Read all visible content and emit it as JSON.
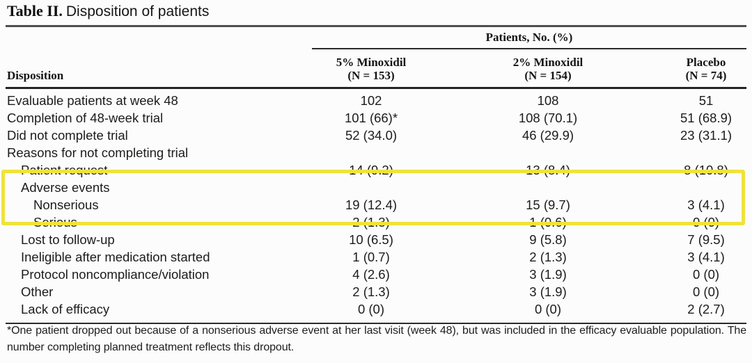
{
  "title": {
    "label": "Table II.",
    "caption": "Disposition of patients"
  },
  "table": {
    "spanner": "Patients, No. (%)",
    "row_header": "Disposition",
    "columns": [
      {
        "line1": "5% Minoxidil",
        "line2": "(N = 153)"
      },
      {
        "line1": "2% Minoxidil",
        "line2": "(N = 154)"
      },
      {
        "line1": "Placebo",
        "line2": "(N = 74)"
      }
    ],
    "rows": [
      {
        "label": "Evaluable patients at week 48",
        "indent": 0,
        "highlight": false,
        "values": [
          "102",
          "108",
          "51"
        ]
      },
      {
        "label": "Completion of 48-week trial",
        "indent": 0,
        "highlight": false,
        "values": [
          "101 (66)*",
          "108 (70.1)",
          "51 (68.9)"
        ]
      },
      {
        "label": "Did not complete trial",
        "indent": 0,
        "highlight": false,
        "values": [
          "52 (34.0)",
          "46 (29.9)",
          "23 (31.1)"
        ]
      },
      {
        "label": "Reasons for not completing trial",
        "indent": 0,
        "highlight": false,
        "values": [
          "",
          "",
          ""
        ]
      },
      {
        "label": "Patient request",
        "indent": 1,
        "highlight": false,
        "values": [
          "14 (9.2)",
          "13 (8.4)",
          "8 (10.8)"
        ]
      },
      {
        "label": "Adverse events",
        "indent": 1,
        "highlight": true,
        "values": [
          "",
          "",
          ""
        ]
      },
      {
        "label": "Nonserious",
        "indent": 2,
        "highlight": true,
        "values": [
          "19 (12.4)",
          "15 (9.7)",
          "3 (4.1)"
        ]
      },
      {
        "label": "Serious",
        "indent": 2,
        "highlight": true,
        "values": [
          "2 (1.3)",
          "1 (0.6)",
          "0 (0)"
        ]
      },
      {
        "label": "Lost to follow-up",
        "indent": 1,
        "highlight": false,
        "values": [
          "10 (6.5)",
          "9 (5.8)",
          "7 (9.5)"
        ]
      },
      {
        "label": "Ineligible after medication started",
        "indent": 1,
        "highlight": false,
        "values": [
          "1 (0.7)",
          "2 (1.3)",
          "3 (4.1)"
        ]
      },
      {
        "label": "Protocol noncompliance/violation",
        "indent": 1,
        "highlight": false,
        "values": [
          "4 (2.6)",
          "3 (1.9)",
          "0 (0)"
        ]
      },
      {
        "label": "Other",
        "indent": 1,
        "highlight": false,
        "values": [
          "2 (1.3)",
          "3 (1.9)",
          "0 (0)"
        ]
      },
      {
        "label": "Lack of efficacy",
        "indent": 1,
        "highlight": false,
        "values": [
          "0 (0)",
          "0 (0)",
          "2 (2.7)"
        ]
      }
    ]
  },
  "highlight_color": "#f0e23a",
  "footnote": "*One patient dropped out because of a nonserious adverse event at her last visit (week 48), but was included in the efficacy evaluable population. The number completing planned treatment reflects this dropout."
}
